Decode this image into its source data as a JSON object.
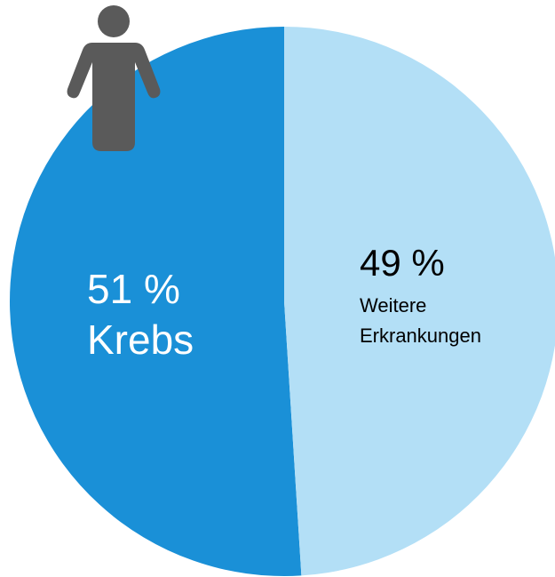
{
  "chart_data": {
    "type": "pie",
    "categories": [
      "Krebs",
      "Weitere Erkrankungen"
    ],
    "values": [
      51,
      49
    ],
    "value_labels": [
      "51 %",
      "49 %"
    ],
    "colors": [
      "#1a90d7",
      "#b3dff6"
    ]
  }
}
